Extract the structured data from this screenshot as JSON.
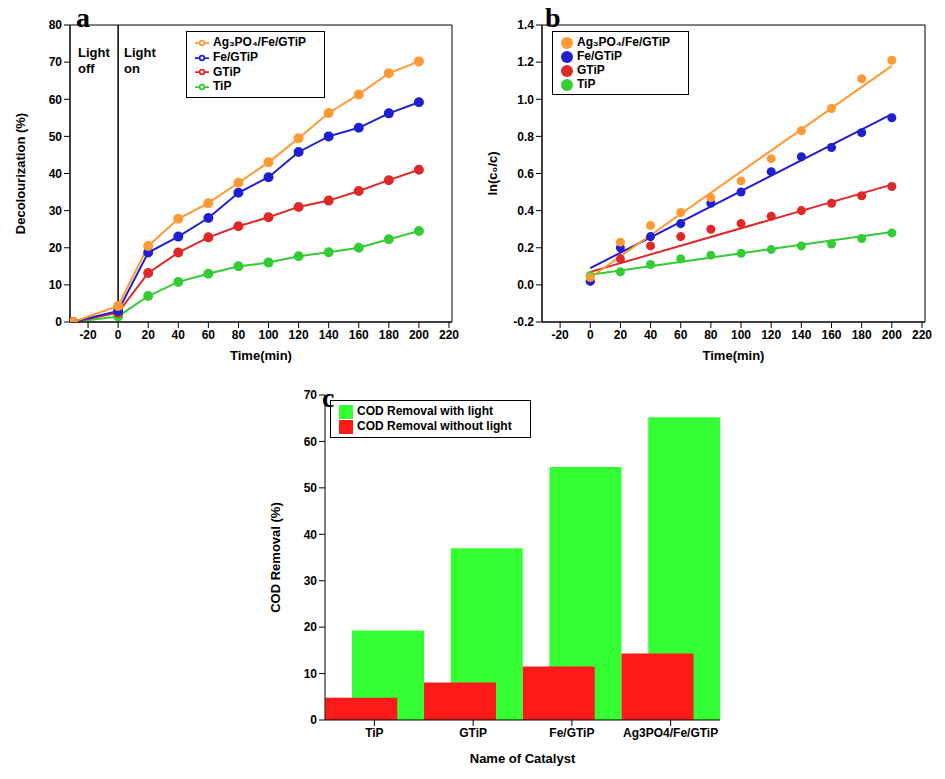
{
  "chart_data": [
    {
      "type": "line",
      "title": "a",
      "x": [
        -30,
        0,
        20,
        40,
        60,
        80,
        100,
        120,
        140,
        160,
        180,
        200
      ],
      "xlim": [
        -32,
        222
      ],
      "xticks": [
        -20,
        0,
        20,
        40,
        60,
        80,
        100,
        120,
        140,
        160,
        180,
        200,
        220
      ],
      "ylim": [
        0,
        80
      ],
      "yticks": [
        0,
        10,
        20,
        30,
        40,
        50,
        60,
        70,
        80
      ],
      "xlabel": "Time(min)",
      "ylabel": "Decolourization (%)",
      "legend": "upper left",
      "grid": false,
      "marker": "circle",
      "divider_x": 0,
      "annotations": [
        "Light off",
        "Light on"
      ],
      "series": [
        {
          "name": "TiP",
          "color": "#33cc33",
          "values": [
            0,
            1.5,
            7,
            10.8,
            13,
            15,
            16,
            17.7,
            18.8,
            20,
            22.3,
            24.5
          ]
        },
        {
          "name": "GTiP",
          "color": "#e02828",
          "values": [
            0,
            2.5,
            13.2,
            18.7,
            22.8,
            25.8,
            28.2,
            31,
            32.7,
            35.3,
            38.2,
            41
          ]
        },
        {
          "name": "Fe/GTiP",
          "color": "#2020d0",
          "values": [
            0,
            3,
            18.7,
            23,
            28,
            34.8,
            39,
            45.8,
            50,
            52.3,
            56.2,
            59.2
          ]
        },
        {
          "name": "Ag₃PO₄/Fe/GTiP",
          "color": "#ff9933",
          "values": [
            0,
            4.3,
            20.5,
            27.8,
            32,
            37.5,
            43,
            49.5,
            56.3,
            61.3,
            67,
            70.2
          ]
        }
      ]
    },
    {
      "type": "scatter",
      "title": "b",
      "x": [
        0,
        20,
        40,
        60,
        80,
        100,
        120,
        140,
        160,
        180,
        200
      ],
      "xlim": [
        -32,
        222
      ],
      "xticks": [
        -20,
        0,
        20,
        40,
        60,
        80,
        100,
        120,
        140,
        160,
        180,
        200,
        220
      ],
      "ylim": [
        -0.2,
        1.4
      ],
      "yticks": [
        -0.2,
        {
          "value": 0,
          "label": "0.0"
        },
        0.2,
        0.4,
        0.6,
        0.8,
        {
          "value": 1,
          "label": "1.0"
        },
        1.2,
        1.4
      ],
      "xlabel": "Time(min)",
      "ylabel": "ln(c₀/c)",
      "legend": "upper left",
      "grid": false,
      "marker": "circle",
      "fit_x": [
        0,
        200
      ],
      "series": [
        {
          "name": "TiP",
          "color": "#33cc33",
          "values": [
            0.05,
            0.07,
            0.11,
            0.14,
            0.16,
            0.17,
            0.19,
            0.21,
            0.22,
            0.25,
            0.28
          ],
          "fit": [
            0.055,
            0.285
          ]
        },
        {
          "name": "GTiP",
          "color": "#e02828",
          "values": [
            0.02,
            0.14,
            0.21,
            0.26,
            0.3,
            0.33,
            0.37,
            0.4,
            0.44,
            0.48,
            0.53
          ],
          "fit": [
            0.07,
            0.54
          ]
        },
        {
          "name": "Fe/GTiP",
          "color": "#2020d0",
          "values": [
            0.02,
            0.2,
            0.26,
            0.33,
            0.44,
            0.5,
            0.61,
            0.69,
            0.74,
            0.82,
            0.9
          ],
          "fit": [
            0.09,
            0.92
          ]
        },
        {
          "name": "Ag₃PO₄/Fe/GTiP",
          "color": "#ff9933",
          "values": [
            0.04,
            0.23,
            0.32,
            0.39,
            0.47,
            0.56,
            0.68,
            0.83,
            0.95,
            1.11,
            1.21
          ],
          "fit": [
            0.04,
            1.18
          ]
        }
      ]
    },
    {
      "type": "bar",
      "title": "c",
      "categories": [
        "TiP",
        "GTiP",
        "Fe/GTiP",
        "Ag3PO4/Fe/GTiP"
      ],
      "ylim": [
        0,
        70
      ],
      "yticks": [
        0,
        10,
        20,
        30,
        40,
        50,
        60,
        70
      ],
      "xlabel": "Name of Catalyst",
      "ylabel": "COD Removal (%)",
      "legend": "upper left",
      "grid": false,
      "stacked": false,
      "series": [
        {
          "name": "COD Removal with light",
          "color": "#33ff33",
          "values": [
            19.3,
            37,
            54.5,
            65.2
          ]
        },
        {
          "name": "COD Removal without light",
          "color": "#ff1a1a",
          "values": [
            4.8,
            8.1,
            11.5,
            14.3
          ]
        }
      ]
    }
  ]
}
